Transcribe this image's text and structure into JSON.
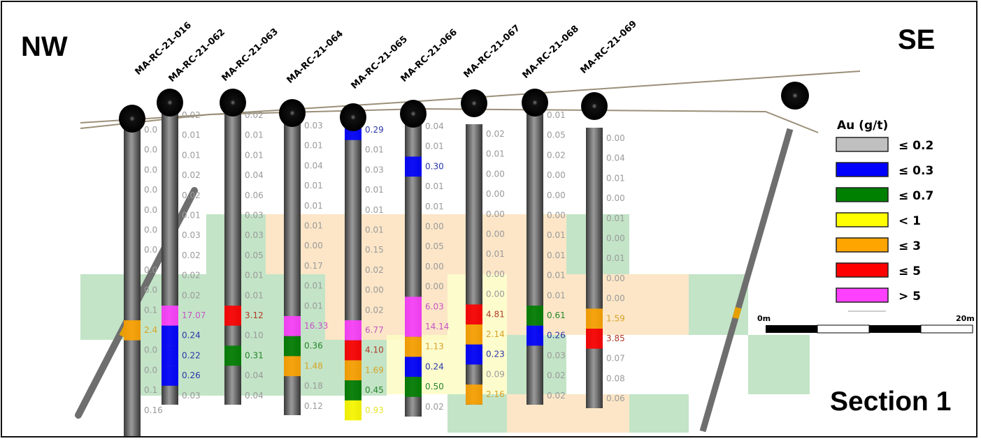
{
  "titles": {
    "left": "NW",
    "right": "SE",
    "section": "Section 1"
  },
  "legend": {
    "title": "Au (g/t)",
    "items": [
      {
        "label": "≤ 0.2",
        "color": "#c0c0c0",
        "max": 0.2
      },
      {
        "label": "≤ 0.3",
        "color": "#0000ff",
        "max": 0.3
      },
      {
        "label": "≤ 0.7",
        "color": "#008000",
        "max": 0.7
      },
      {
        "label": "< 1",
        "color": "#ffff00",
        "max": 1
      },
      {
        "label": "≤ 3",
        "color": "#ffa500",
        "max": 3
      },
      {
        "label": "≤ 5",
        "color": "#ff0000",
        "max": 5
      },
      {
        "label": "> 5",
        "color": "#ff40ff",
        "max": 1000
      }
    ]
  },
  "scale_bar": {
    "start": "0m",
    "end": "20m"
  },
  "holes": [
    {
      "name": "MA-RC-21-016",
      "values": [
        "0.0",
        "0.0",
        "0.0",
        "0.0",
        "0.0",
        "0.0",
        "0.0",
        "0.0",
        "0.0",
        "0.1",
        "2.4",
        "0.0",
        "0.0",
        "0.1",
        "0.16"
      ]
    },
    {
      "name": "MA-RC-21-062",
      "values": [
        "0.02",
        "0.01",
        "0.01",
        "0.02",
        "0.02",
        "0.01",
        "0.03",
        "0.02",
        "0.02",
        "0.02",
        "17.07",
        "0.24",
        "0.22",
        "0.26",
        "0.03"
      ]
    },
    {
      "name": "MA-RC-21-063",
      "values": [
        "0.02",
        "0.01",
        "0.01",
        "0.04",
        "0.06",
        "0.03",
        "0.03",
        "0.05",
        "0.01",
        "0.01",
        "3.12",
        "0.10",
        "0.31",
        "0.04",
        "0.04"
      ]
    },
    {
      "name": "MA-RC-21-064",
      "values": [
        "0.03",
        "0.01",
        "0.04",
        "0.01",
        "0.01",
        "0.01",
        "0.00",
        "0.17",
        "0.01",
        "0.01",
        "16.33",
        "0.36",
        "1.48",
        "0.18",
        "0.12"
      ]
    },
    {
      "name": "MA-RC-21-065",
      "values": [
        "0.29",
        "0.01",
        "0.03",
        "0.01",
        "0.01",
        "0.01",
        "0.15",
        "0.02",
        "0.00",
        "0.02",
        "6.77",
        "4.10",
        "1.69",
        "0.45",
        "0.93"
      ]
    },
    {
      "name": "MA-RC-21-066",
      "values": [
        "0.04",
        "0.01",
        "0.30",
        "0.01",
        "0.01",
        "0.00",
        "0.05",
        "0.00",
        "0.00",
        "6.03",
        "14.14",
        "1.13",
        "0.24",
        "0.50",
        "0.02"
      ]
    },
    {
      "name": "MA-RC-21-067",
      "values": [
        "0.02",
        "0.01",
        "0.00",
        "0.00",
        "0.00",
        "0.00",
        "0.01",
        "0.00",
        "0.00",
        "4.81",
        "2.14",
        "0.23",
        "0.09",
        "2.16"
      ]
    },
    {
      "name": "MA-RC-21-068",
      "values": [
        "0.01",
        "0.05",
        "0.02",
        "0.00",
        "0.00",
        "0.00",
        "0.01",
        "0.01",
        "0.01",
        "0.01",
        "0.61",
        "0.26",
        "0.03",
        "0.02",
        "0.02"
      ]
    },
    {
      "name": "MA-RC-21-069",
      "values": [
        "0.00",
        "0.04",
        "0.01",
        "0.00",
        "0.01",
        "0.00",
        "0.01",
        "0.00",
        "0.00",
        "1.59",
        "3.85",
        "0.07",
        "0.08",
        "0.06"
      ]
    }
  ]
}
